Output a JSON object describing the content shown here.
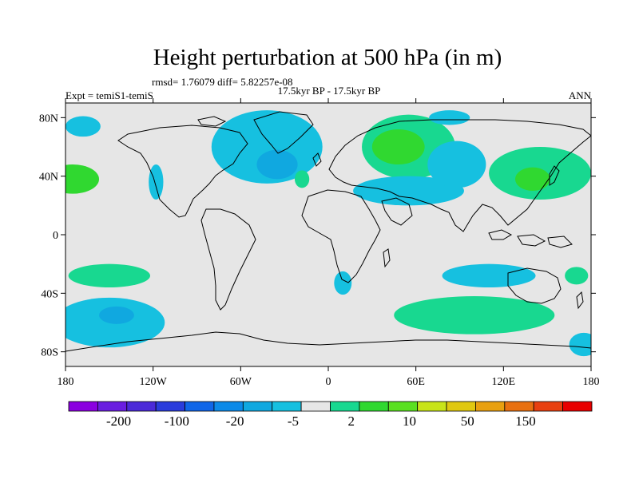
{
  "chart_data": {
    "type": "heatmap",
    "title": "Height perturbation at 500 hPa (in m)",
    "stats": "rmsd= 1.76079 diff= 5.82257e-08",
    "subtitle_left": "Expt = temiS1-temiS",
    "subtitle_center": "17.5kyr BP - 17.5kyr BP",
    "subtitle_right": "ANN",
    "x_ticks": [
      {
        "value": -180,
        "label": "180"
      },
      {
        "value": -120,
        "label": "120W"
      },
      {
        "value": -60,
        "label": "60W"
      },
      {
        "value": 0,
        "label": "0"
      },
      {
        "value": 60,
        "label": "60E"
      },
      {
        "value": 120,
        "label": "120E"
      },
      {
        "value": 180,
        "label": "180"
      }
    ],
    "y_ticks": [
      {
        "value": 80,
        "label": "80N"
      },
      {
        "value": 40,
        "label": "40N"
      },
      {
        "value": 0,
        "label": "0"
      },
      {
        "value": -40,
        "label": "40S"
      },
      {
        "value": -80,
        "label": "80S"
      }
    ],
    "xlim": [
      -180,
      180
    ],
    "ylim": [
      -90,
      90
    ],
    "colorbar": {
      "colors": [
        "#8b00e0",
        "#6a1ee0",
        "#4b2ad8",
        "#2a3cdc",
        "#1066e8",
        "#0c8ae8",
        "#10a8e0",
        "#16c0e0",
        "#e6e6e6",
        "#18d890",
        "#30d830",
        "#5ae020",
        "#c8e418",
        "#e0c810",
        "#e8a010",
        "#e87010",
        "#e84010",
        "#e80000"
      ],
      "labels": [
        "-200",
        "-100",
        "-20",
        "-5",
        "2",
        "10",
        "50",
        "150"
      ],
      "label_boundaries": [
        1,
        3,
        5,
        7,
        9,
        11,
        13,
        15
      ]
    },
    "anomalies": [
      {
        "lon": -175,
        "lat": 38,
        "rx": 18,
        "ry": 10,
        "value": 10
      },
      {
        "lon": -178,
        "lat": 39,
        "rx": 6,
        "ry": 5,
        "value": 20
      },
      {
        "lon": -168,
        "lat": 74,
        "rx": 12,
        "ry": 7,
        "value": -5
      },
      {
        "lon": -118,
        "lat": 36,
        "rx": 5,
        "ry": 12,
        "value": -5
      },
      {
        "lon": -42,
        "lat": 60,
        "rx": 38,
        "ry": 25,
        "value": -5
      },
      {
        "lon": -35,
        "lat": 48,
        "rx": 14,
        "ry": 10,
        "value": -10
      },
      {
        "lon": -18,
        "lat": 38,
        "rx": 5,
        "ry": 6,
        "value": 5
      },
      {
        "lon": 55,
        "lat": 60,
        "rx": 32,
        "ry": 22,
        "value": 5
      },
      {
        "lon": 48,
        "lat": 60,
        "rx": 18,
        "ry": 12,
        "value": 10
      },
      {
        "lon": 55,
        "lat": 30,
        "rx": 38,
        "ry": 10,
        "value": -5
      },
      {
        "lon": 88,
        "lat": 48,
        "rx": 20,
        "ry": 16,
        "value": -5
      },
      {
        "lon": 83,
        "lat": 80,
        "rx": 14,
        "ry": 5,
        "value": -5
      },
      {
        "lon": 145,
        "lat": 42,
        "rx": 35,
        "ry": 18,
        "value": 5
      },
      {
        "lon": 140,
        "lat": 38,
        "rx": 12,
        "ry": 8,
        "value": 10
      },
      {
        "lon": -150,
        "lat": -28,
        "rx": 28,
        "ry": 8,
        "value": 5
      },
      {
        "lon": -150,
        "lat": -60,
        "rx": 38,
        "ry": 17,
        "value": -5
      },
      {
        "lon": -145,
        "lat": -55,
        "rx": 12,
        "ry": 6,
        "value": -10
      },
      {
        "lon": 110,
        "lat": -28,
        "rx": 32,
        "ry": 8,
        "value": -5
      },
      {
        "lon": 100,
        "lat": -55,
        "rx": 55,
        "ry": 13,
        "value": 5
      },
      {
        "lon": 170,
        "lat": -28,
        "rx": 8,
        "ry": 6,
        "value": 5
      },
      {
        "lon": 175,
        "lat": -75,
        "rx": 10,
        "ry": 8,
        "value": -5
      },
      {
        "lon": 10,
        "lat": -33,
        "rx": 6,
        "ry": 8,
        "value": -5
      }
    ]
  }
}
